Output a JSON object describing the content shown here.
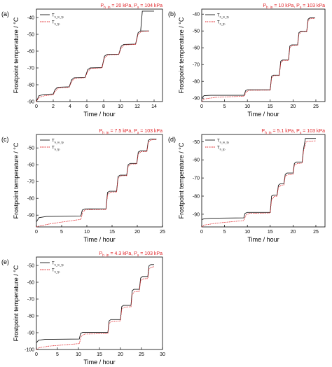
{
  "figure": {
    "legend": [
      {
        "main": "T",
        "sub": "h_in_fp",
        "stroke": "#1a1a1a",
        "dash": false
      },
      {
        "main": "T",
        "sub": "h_fp",
        "stroke": "#e0262a",
        "dash": true
      }
    ],
    "xlabel": "Time / hour",
    "ylabel": "Frostpoint temperature / °C",
    "colors": {
      "measured": "#1a1a1a",
      "fp": "#e0262a",
      "condition": "#e0262a"
    }
  },
  "chart_data": [
    {
      "type": "line",
      "panel": "(a)",
      "condition": {
        "p_main": "P",
        "p_sub": "h_in",
        "p_value": " = 20 kPa, ",
        "s_main": "P",
        "s_sub": "s",
        "s_value": " = 104 kPa"
      },
      "xlim": [
        0,
        15
      ],
      "ylim": [
        -90,
        -35
      ],
      "xticks": [
        "0",
        "2",
        "4",
        "6",
        "8",
        "10",
        "12",
        "14"
      ],
      "yticks": [
        "-40",
        "-50",
        "-60",
        "-70",
        "-80",
        "-90"
      ],
      "series": [
        {
          "name": "T h_in_fp",
          "x": [
            0,
            0.3,
            1,
            2,
            2.2,
            2.5,
            3.9,
            4.2,
            4.5,
            5.8,
            6.1,
            6.4,
            7.8,
            8.1,
            8.4,
            9.8,
            10.1,
            10.4,
            11.8,
            12.1,
            12.4,
            13.4
          ],
          "y": [
            -90,
            -86.5,
            -85.7,
            -85.5,
            -83,
            -81.5,
            -81.2,
            -77,
            -75.8,
            -75.6,
            -71,
            -70,
            -69.8,
            -63,
            -62,
            -61.8,
            -57,
            -56,
            -55.8,
            -49,
            -48,
            -48
          ]
        },
        {
          "name": "T h_fp",
          "x": [
            0,
            0.3,
            1,
            2,
            2.2,
            2.6,
            3.9,
            4.2,
            4.6,
            5.8,
            6.1,
            6.5,
            7.8,
            8.1,
            8.5,
            9.8,
            10.1,
            10.5,
            11.8,
            12.1,
            12.5,
            13.4
          ],
          "y": [
            -90,
            -87.5,
            -86.5,
            -86,
            -84,
            -82,
            -81.5,
            -78,
            -76.2,
            -75.8,
            -72,
            -70.3,
            -70,
            -64,
            -62.3,
            -62,
            -58,
            -56.3,
            -56,
            -50,
            -48.3,
            -48
          ]
        },
        {
          "name": "T h_in_fp (final plateau)",
          "x": [
            12.4,
            12.6,
            14
          ],
          "y": [
            -48,
            -36.2,
            -36.2
          ]
        }
      ]
    },
    {
      "type": "line",
      "panel": "(b)",
      "condition": {
        "p_main": "P",
        "p_sub": "h_in",
        "p_value": " = 10 kPa, ",
        "s_main": "P",
        "s_sub": "s",
        "s_value": " = 103 kPa"
      },
      "xlim": [
        0,
        27
      ],
      "ylim": [
        -92,
        -37
      ],
      "xticks": [
        "0",
        "5",
        "10",
        "15",
        "20",
        "25"
      ],
      "yticks": [
        "-40",
        "-50",
        "-60",
        "-70",
        "-80",
        "-90"
      ],
      "series": [
        {
          "name": "T h_in_fp",
          "x": [
            0,
            0.5,
            2,
            9.3,
            9.6,
            10,
            15,
            15.3,
            15.7,
            17,
            17.3,
            17.7,
            19,
            19.3,
            19.7,
            21,
            21.3,
            21.7,
            23,
            23.3,
            23.7,
            24.8
          ],
          "y": [
            -90,
            -88.5,
            -88.3,
            -88.3,
            -85.5,
            -85,
            -85,
            -77,
            -76.3,
            -76.3,
            -68,
            -67.3,
            -67.3,
            -59,
            -58.3,
            -58.3,
            -51,
            -50.2,
            -50.2,
            -43,
            -42.2,
            -42.2
          ]
        },
        {
          "name": "T h_fp",
          "x": [
            0,
            0.5,
            3,
            9.3,
            9.7,
            10.3,
            15,
            15.3,
            15.8,
            17,
            17.3,
            17.8,
            19,
            19.3,
            19.8,
            21,
            21.3,
            21.8,
            23,
            23.3,
            23.8,
            24.8
          ],
          "y": [
            -92,
            -90.5,
            -89.5,
            -88.8,
            -86.5,
            -85.3,
            -85.2,
            -78,
            -76.6,
            -76.5,
            -69,
            -67.6,
            -67.5,
            -60,
            -58.6,
            -58.5,
            -52,
            -50.5,
            -50.4,
            -44,
            -42.6,
            -42.5
          ]
        }
      ]
    },
    {
      "type": "line",
      "panel": "(c)",
      "condition": {
        "p_main": "P",
        "p_sub": "h_in",
        "p_value": " = 7.5 kPa, ",
        "s_main": "P",
        "s_sub": "s",
        "s_value": " = 103 kPa"
      },
      "xlim": [
        0,
        25
      ],
      "ylim": [
        -97,
        -42
      ],
      "xticks": [
        "0",
        "5",
        "10",
        "15",
        "20",
        "25"
      ],
      "yticks": [
        "-50",
        "-60",
        "-70",
        "-80",
        "-90"
      ],
      "series": [
        {
          "name": "T h_in_fp",
          "x": [
            0,
            0.5,
            2,
            8.8,
            9.1,
            9.6,
            13.8,
            14.1,
            14.5,
            15.9,
            16.2,
            16.6,
            17.9,
            18.2,
            18.6,
            19.9,
            20.2,
            20.6,
            21.9,
            22.2,
            22.6,
            23.8
          ],
          "y": [
            -94,
            -91.5,
            -90.8,
            -90.5,
            -87,
            -86.3,
            -86.2,
            -76.5,
            -75.8,
            -75.8,
            -67,
            -66.2,
            -66.2,
            -60,
            -59.2,
            -59.2,
            -52.5,
            -51.8,
            -51.8,
            -45.5,
            -44.8,
            -44.8
          ]
        },
        {
          "name": "T h_fp",
          "x": [
            0,
            0.5,
            3,
            8.8,
            9.2,
            9.8,
            13.8,
            14.1,
            14.7,
            15.9,
            16.2,
            16.8,
            17.9,
            18.2,
            18.8,
            19.9,
            20.2,
            20.8,
            21.9,
            22.2,
            22.8,
            23.8
          ],
          "y": [
            -97,
            -96.5,
            -95,
            -92.5,
            -88,
            -86.8,
            -86.7,
            -78,
            -76.3,
            -76.2,
            -68,
            -66.6,
            -66.5,
            -61,
            -59.6,
            -59.5,
            -53.5,
            -52.2,
            -52.1,
            -46.5,
            -45.2,
            -45.1
          ]
        }
      ]
    },
    {
      "type": "line",
      "panel": "(d)",
      "condition": {
        "p_main": "P",
        "p_sub": "h_in",
        "p_value": " = 5.1 kPa, ",
        "s_main": "P",
        "s_sub": "s",
        "s_value": " = 103 kPa"
      },
      "xlim": [
        0,
        27
      ],
      "ylim": [
        -97,
        -46
      ],
      "xticks": [
        "0",
        "5",
        "10",
        "15",
        "20",
        "25"
      ],
      "yticks": [
        "-50",
        "-60",
        "-70",
        "-80",
        "-90"
      ],
      "series": [
        {
          "name": "T h_in_fp",
          "x": [
            0,
            0.5,
            2,
            9.2,
            9.5,
            10,
            15,
            15.3,
            15.7,
            16.5,
            16.8,
            17.2,
            18,
            18.3,
            18.7,
            20,
            20.3,
            20.7,
            22,
            22.3,
            22.7,
            25
          ],
          "y": [
            -93,
            -92.5,
            -92.2,
            -92,
            -89.5,
            -89,
            -89,
            -80,
            -79.5,
            -79.5,
            -74,
            -73.2,
            -73.2,
            -68,
            -67.3,
            -67.3,
            -62,
            -61.2,
            -61.2,
            -54,
            -48.2,
            -48.2
          ]
        },
        {
          "name": "T h_fp",
          "x": [
            0,
            0.5,
            3,
            9.2,
            9.7,
            10.4,
            15,
            15.3,
            15.9,
            16.5,
            16.8,
            17.4,
            18,
            18.3,
            18.9,
            20,
            20.3,
            20.9,
            22,
            22.3,
            22.9,
            25
          ],
          "y": [
            -97,
            -96,
            -95,
            -93.5,
            -90.5,
            -89.5,
            -89.3,
            -82,
            -80.2,
            -80,
            -75,
            -74,
            -73.8,
            -69,
            -68.2,
            -68,
            -63,
            -62,
            -61.8,
            -55,
            -49.8,
            -49.5
          ]
        }
      ]
    },
    {
      "type": "line",
      "panel": "(e)",
      "condition": {
        "p_main": "P",
        "p_sub": "h_in",
        "p_value": " = 4.3 kPa, ",
        "s_main": "P",
        "s_sub": "s",
        "s_value": " = 103 kPa"
      },
      "xlim": [
        0,
        30
      ],
      "ylim": [
        -100,
        -45
      ],
      "xticks": [
        "0",
        "5",
        "10",
        "15",
        "20",
        "25",
        "30"
      ],
      "yticks": [
        "-50",
        "-60",
        "-70",
        "-80",
        "-90",
        "-100"
      ],
      "series": [
        {
          "name": "T h_in_fp",
          "x": [
            0,
            0.5,
            2,
            10.2,
            10.5,
            11,
            17,
            17.3,
            17.7,
            20,
            20.3,
            20.7,
            22.5,
            22.8,
            23.2,
            24.5,
            24.8,
            25.2,
            26.5,
            26.8,
            27.2,
            28
          ],
          "y": [
            -96,
            -94.5,
            -94,
            -93.8,
            -90.5,
            -89.8,
            -89.8,
            -83,
            -82.2,
            -82.2,
            -74.5,
            -73.8,
            -73.8,
            -65,
            -64.2,
            -64.2,
            -57.5,
            -56.6,
            -56.6,
            -50.2,
            -49.5,
            -49.5
          ]
        },
        {
          "name": "T h_fp",
          "x": [
            0,
            0.5,
            3,
            10.2,
            10.7,
            11.5,
            17,
            17.3,
            17.9,
            20,
            20.3,
            20.9,
            22.5,
            22.8,
            23.4,
            24.5,
            24.8,
            25.4,
            26.5,
            26.8,
            27.4,
            28
          ],
          "y": [
            -100,
            -99,
            -98,
            -96.5,
            -92,
            -90.8,
            -90.6,
            -84.5,
            -83.2,
            -83,
            -76,
            -74.8,
            -74.6,
            -67,
            -65.6,
            -65.4,
            -59,
            -58,
            -57.8,
            -52,
            -51,
            -50.8
          ]
        }
      ]
    }
  ]
}
